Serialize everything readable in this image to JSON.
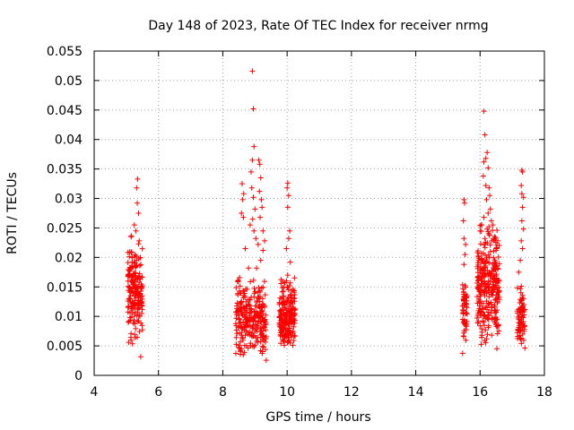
{
  "chart_data": {
    "type": "scatter",
    "title": "Day 148 of 2023, Rate Of TEC Index for receiver nrmg",
    "xlabel": "GPS time / hours",
    "ylabel": "ROTI / TECUs",
    "xlim": [
      4,
      18
    ],
    "ylim": [
      0,
      0.055
    ],
    "xticks": [
      4,
      6,
      8,
      10,
      12,
      14,
      16,
      18
    ],
    "xtick_labels": [
      "4",
      "6",
      "8",
      "10",
      "12",
      "14",
      "16",
      "18"
    ],
    "yticks": [
      0,
      0.005,
      0.01,
      0.015,
      0.02,
      0.025,
      0.03,
      0.035,
      0.04,
      0.045,
      0.05,
      0.055
    ],
    "ytick_labels": [
      "0",
      "0.005",
      "0.01",
      "0.015",
      "0.02",
      "0.025",
      "0.03",
      "0.035",
      "0.04",
      "0.045",
      "0.05",
      "0.055"
    ],
    "grid": true,
    "marker": "+",
    "series": [
      {
        "name": "ROTI",
        "color": "#ff0000",
        "clusters": [
          {
            "x_range": [
              5.05,
              5.5
            ],
            "y_range": [
              0.0025,
              0.024
            ],
            "count": 200
          },
          {
            "x_range": [
              8.4,
              9.35
            ],
            "y_range": [
              0.002,
              0.017
            ],
            "count": 280
          },
          {
            "x_range": [
              9.75,
              10.25
            ],
            "y_range": [
              0.003,
              0.017
            ],
            "count": 220
          },
          {
            "x_range": [
              15.45,
              15.6
            ],
            "y_range": [
              0.003,
              0.018
            ],
            "count": 60
          },
          {
            "x_range": [
              15.9,
              16.6
            ],
            "y_range": [
              0.003,
              0.026
            ],
            "count": 300
          },
          {
            "x_range": [
              17.15,
              17.4
            ],
            "y_range": [
              0.003,
              0.016
            ],
            "count": 80
          }
        ],
        "points": [
          [
            5.35,
            0.0333
          ],
          [
            5.32,
            0.0318
          ],
          [
            5.34,
            0.0292
          ],
          [
            5.38,
            0.0275
          ],
          [
            5.3,
            0.0245
          ],
          [
            5.15,
            0.0235
          ],
          [
            5.25,
            0.0255
          ],
          [
            5.4,
            0.0228
          ],
          [
            8.6,
            0.0325
          ],
          [
            8.62,
            0.0298
          ],
          [
            8.58,
            0.0275
          ],
          [
            8.65,
            0.0308
          ],
          [
            8.64,
            0.0268
          ],
          [
            8.7,
            0.0215
          ],
          [
            8.92,
            0.0516
          ],
          [
            8.95,
            0.0452
          ],
          [
            8.97,
            0.0388
          ],
          [
            8.88,
            0.0345
          ],
          [
            8.92,
            0.0365
          ],
          [
            8.9,
            0.0318
          ],
          [
            8.95,
            0.0302
          ],
          [
            9.0,
            0.0282
          ],
          [
            8.93,
            0.0265
          ],
          [
            8.85,
            0.0255
          ],
          [
            8.97,
            0.0245
          ],
          [
            9.03,
            0.0232
          ],
          [
            9.12,
            0.0365
          ],
          [
            9.15,
            0.0358
          ],
          [
            9.18,
            0.0335
          ],
          [
            9.14,
            0.0312
          ],
          [
            9.2,
            0.0298
          ],
          [
            9.22,
            0.0285
          ],
          [
            9.16,
            0.0268
          ],
          [
            9.25,
            0.0245
          ],
          [
            9.3,
            0.0228
          ],
          [
            9.1,
            0.0222
          ],
          [
            9.25,
            0.0212
          ],
          [
            9.18,
            0.0195
          ],
          [
            9.05,
            0.0182
          ],
          [
            8.8,
            0.0182
          ],
          [
            10.02,
            0.0326
          ],
          [
            10.0,
            0.0318
          ],
          [
            10.05,
            0.0305
          ],
          [
            10.02,
            0.0285
          ],
          [
            10.08,
            0.0245
          ],
          [
            10.05,
            0.0232
          ],
          [
            9.98,
            0.0215
          ],
          [
            10.1,
            0.0192
          ],
          [
            15.5,
            0.0298
          ],
          [
            15.52,
            0.0292
          ],
          [
            15.48,
            0.0262
          ],
          [
            15.5,
            0.0232
          ],
          [
            15.55,
            0.0222
          ],
          [
            15.53,
            0.0205
          ],
          [
            15.5,
            0.0188
          ],
          [
            16.12,
            0.0448
          ],
          [
            16.15,
            0.0408
          ],
          [
            16.18,
            0.0368
          ],
          [
            16.12,
            0.0362
          ],
          [
            16.22,
            0.0378
          ],
          [
            16.25,
            0.0352
          ],
          [
            16.1,
            0.0338
          ],
          [
            16.18,
            0.0322
          ],
          [
            16.28,
            0.0318
          ],
          [
            16.3,
            0.0305
          ],
          [
            16.2,
            0.0298
          ],
          [
            16.32,
            0.0282
          ],
          [
            16.25,
            0.0275
          ],
          [
            16.12,
            0.0268
          ],
          [
            16.35,
            0.0262
          ],
          [
            16.05,
            0.0255
          ],
          [
            16.4,
            0.0255
          ],
          [
            16.22,
            0.0248
          ],
          [
            16.3,
            0.0238
          ],
          [
            16.45,
            0.0235
          ],
          [
            16.15,
            0.0232
          ],
          [
            16.55,
            0.0228
          ],
          [
            16.0,
            0.0245
          ],
          [
            16.5,
            0.0215
          ],
          [
            17.3,
            0.0348
          ],
          [
            17.32,
            0.0345
          ],
          [
            17.28,
            0.0322
          ],
          [
            17.3,
            0.0308
          ],
          [
            17.35,
            0.0302
          ],
          [
            17.32,
            0.0285
          ],
          [
            17.3,
            0.0262
          ],
          [
            17.35,
            0.0248
          ],
          [
            17.28,
            0.0228
          ],
          [
            17.32,
            0.0215
          ],
          [
            17.25,
            0.0195
          ],
          [
            17.2,
            0.0175
          ]
        ]
      }
    ]
  }
}
